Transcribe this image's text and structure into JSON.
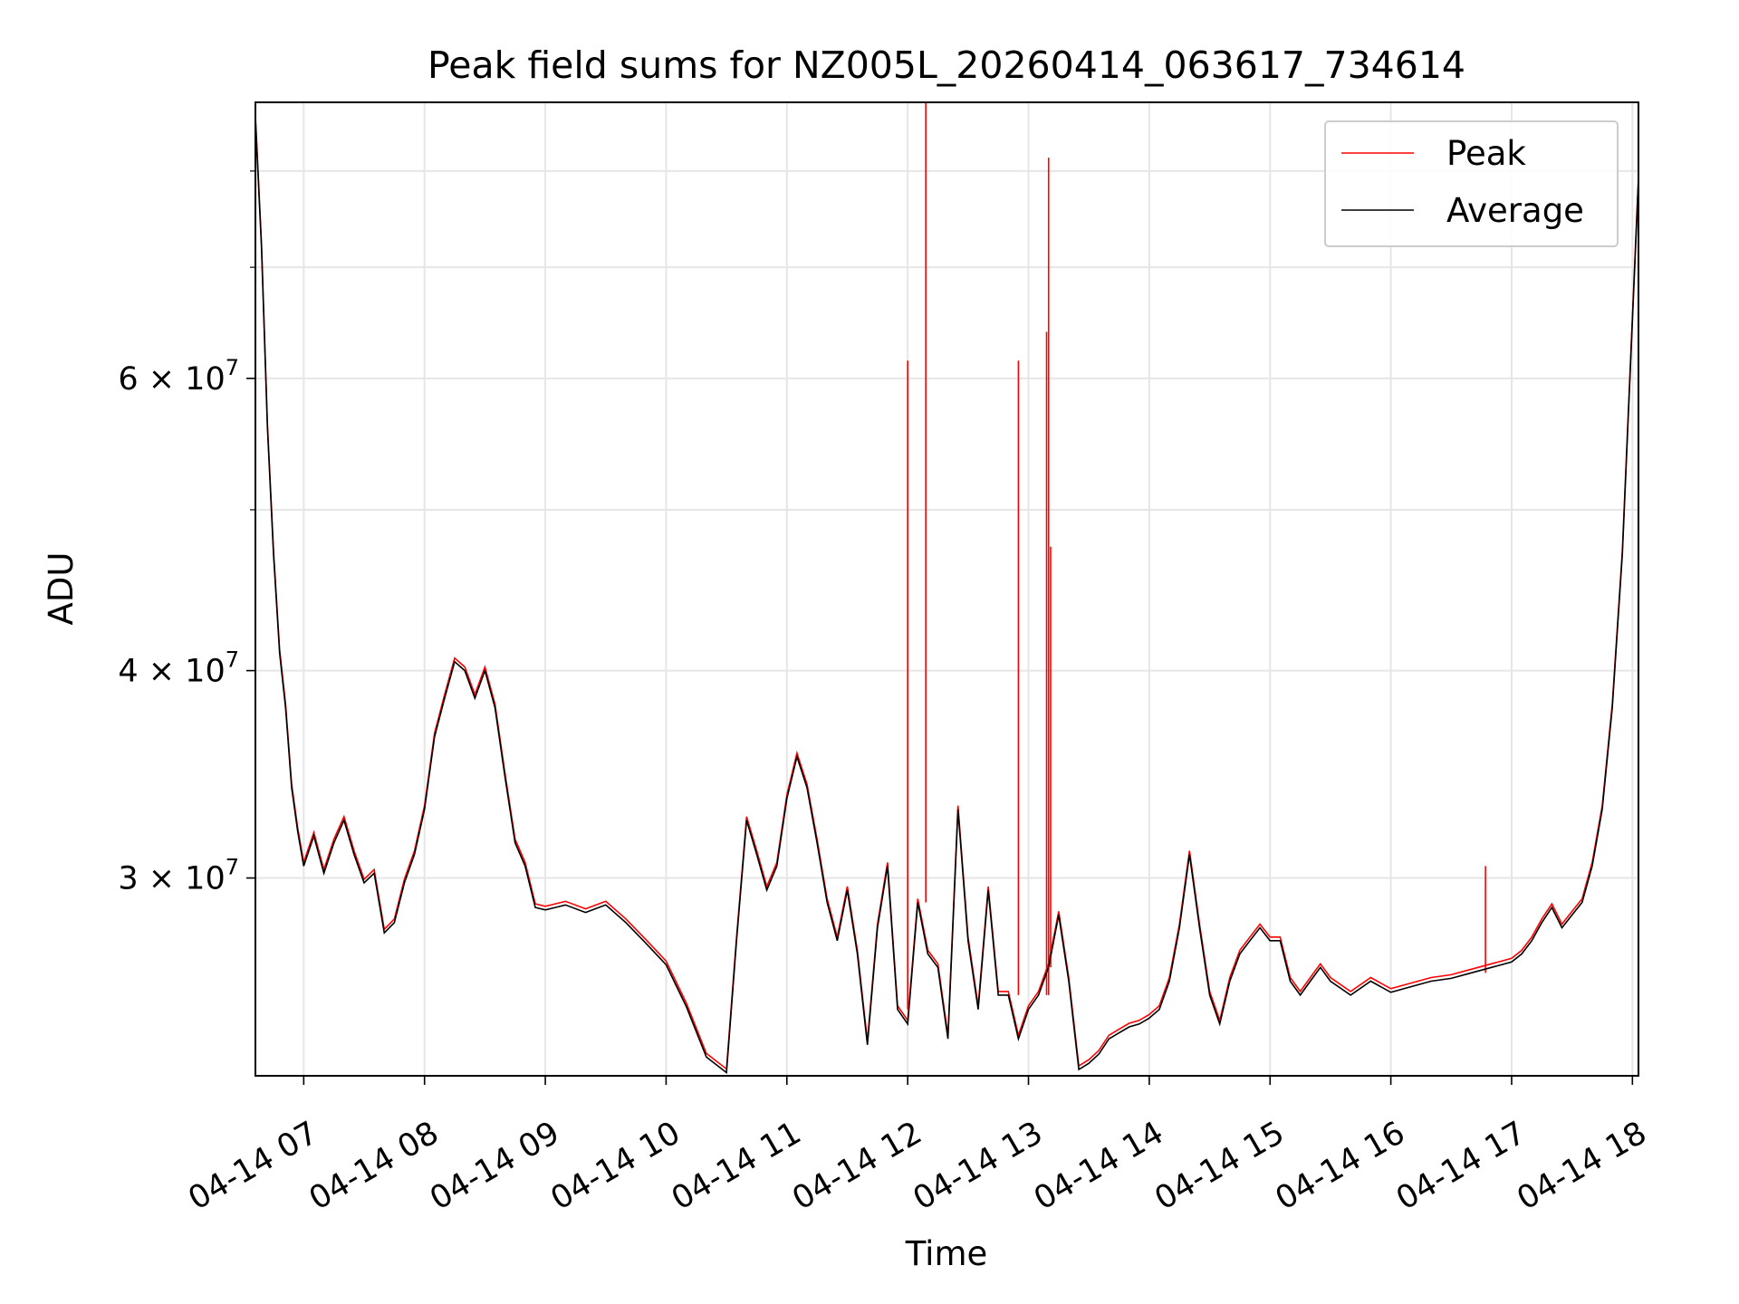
{
  "chart_data": {
    "type": "line",
    "title": "Peak field sums for NZ005L_20260414_063617_734614",
    "xlabel": "Time",
    "ylabel": "ADU",
    "y_scale": "log",
    "grid": true,
    "legend_position": "top-right",
    "xlim": [
      "2026-04-14 06:36",
      "2026-04-14 18:03"
    ],
    "ylim": [
      22800000,
      88000000
    ],
    "x_ticks": [
      {
        "value": "2026-04-14 07:00",
        "label": "04-14 07"
      },
      {
        "value": "2026-04-14 08:00",
        "label": "04-14 08"
      },
      {
        "value": "2026-04-14 09:00",
        "label": "04-14 09"
      },
      {
        "value": "2026-04-14 10:00",
        "label": "04-14 10"
      },
      {
        "value": "2026-04-14 11:00",
        "label": "04-14 11"
      },
      {
        "value": "2026-04-14 12:00",
        "label": "04-14 12"
      },
      {
        "value": "2026-04-14 13:00",
        "label": "04-14 13"
      },
      {
        "value": "2026-04-14 14:00",
        "label": "04-14 14"
      },
      {
        "value": "2026-04-14 15:00",
        "label": "04-14 15"
      },
      {
        "value": "2026-04-14 16:00",
        "label": "04-14 16"
      },
      {
        "value": "2026-04-14 17:00",
        "label": "04-14 17"
      },
      {
        "value": "2026-04-14 18:00",
        "label": "04-14 18"
      }
    ],
    "y_ticks": [
      {
        "value": 30000000,
        "mantissa": "3",
        "exp": "7"
      },
      {
        "value": 40000000,
        "mantissa": "4",
        "exp": "7"
      },
      {
        "value": 60000000,
        "mantissa": "6",
        "exp": "7"
      }
    ],
    "y_minor_ticks": [
      50000000,
      70000000,
      80000000
    ],
    "colors": {
      "peak": "#ff0000",
      "average": "#000000",
      "grid": "#e6e6e6"
    },
    "series": [
      {
        "name": "Average",
        "color": "#000000",
        "x": [
          "2026-04-14 06:36",
          "2026-04-14 06:39",
          "2026-04-14 06:42",
          "2026-04-14 06:45",
          "2026-04-14 06:48",
          "2026-04-14 06:51",
          "2026-04-14 06:54",
          "2026-04-14 06:57",
          "2026-04-14 07:00",
          "2026-04-14 07:05",
          "2026-04-14 07:10",
          "2026-04-14 07:15",
          "2026-04-14 07:20",
          "2026-04-14 07:25",
          "2026-04-14 07:30",
          "2026-04-14 07:35",
          "2026-04-14 07:40",
          "2026-04-14 07:45",
          "2026-04-14 07:50",
          "2026-04-14 07:55",
          "2026-04-14 08:00",
          "2026-04-14 08:05",
          "2026-04-14 08:10",
          "2026-04-14 08:15",
          "2026-04-14 08:20",
          "2026-04-14 08:25",
          "2026-04-14 08:30",
          "2026-04-14 08:35",
          "2026-04-14 08:40",
          "2026-04-14 08:45",
          "2026-04-14 08:50",
          "2026-04-14 08:55",
          "2026-04-14 09:00",
          "2026-04-14 09:05",
          "2026-04-14 09:10",
          "2026-04-14 09:20",
          "2026-04-14 09:30",
          "2026-04-14 09:40",
          "2026-04-14 09:50",
          "2026-04-14 10:00",
          "2026-04-14 10:10",
          "2026-04-14 10:20",
          "2026-04-14 10:30",
          "2026-04-14 10:35",
          "2026-04-14 10:40",
          "2026-04-14 10:45",
          "2026-04-14 10:50",
          "2026-04-14 10:55",
          "2026-04-14 11:00",
          "2026-04-14 11:05",
          "2026-04-14 11:10",
          "2026-04-14 11:15",
          "2026-04-14 11:20",
          "2026-04-14 11:25",
          "2026-04-14 11:30",
          "2026-04-14 11:35",
          "2026-04-14 11:40",
          "2026-04-14 11:45",
          "2026-04-14 11:50",
          "2026-04-14 11:55",
          "2026-04-14 12:00",
          "2026-04-14 12:05",
          "2026-04-14 12:10",
          "2026-04-14 12:15",
          "2026-04-14 12:20",
          "2026-04-14 12:25",
          "2026-04-14 12:30",
          "2026-04-14 12:35",
          "2026-04-14 12:40",
          "2026-04-14 12:45",
          "2026-04-14 12:50",
          "2026-04-14 12:55",
          "2026-04-14 13:00",
          "2026-04-14 13:05",
          "2026-04-14 13:10",
          "2026-04-14 13:15",
          "2026-04-14 13:20",
          "2026-04-14 13:25",
          "2026-04-14 13:30",
          "2026-04-14 13:35",
          "2026-04-14 13:40",
          "2026-04-14 13:45",
          "2026-04-14 13:50",
          "2026-04-14 13:55",
          "2026-04-14 14:00",
          "2026-04-14 14:05",
          "2026-04-14 14:10",
          "2026-04-14 14:15",
          "2026-04-14 14:20",
          "2026-04-14 14:25",
          "2026-04-14 14:30",
          "2026-04-14 14:35",
          "2026-04-14 14:40",
          "2026-04-14 14:45",
          "2026-04-14 14:50",
          "2026-04-14 14:55",
          "2026-04-14 15:00",
          "2026-04-14 15:05",
          "2026-04-14 15:10",
          "2026-04-14 15:15",
          "2026-04-14 15:20",
          "2026-04-14 15:25",
          "2026-04-14 15:30",
          "2026-04-14 15:40",
          "2026-04-14 15:50",
          "2026-04-14 16:00",
          "2026-04-14 16:10",
          "2026-04-14 16:20",
          "2026-04-14 16:30",
          "2026-04-14 16:40",
          "2026-04-14 16:50",
          "2026-04-14 17:00",
          "2026-04-14 17:05",
          "2026-04-14 17:10",
          "2026-04-14 17:15",
          "2026-04-14 17:20",
          "2026-04-14 17:25",
          "2026-04-14 17:30",
          "2026-04-14 17:35",
          "2026-04-14 17:40",
          "2026-04-14 17:45",
          "2026-04-14 17:50",
          "2026-04-14 17:55",
          "2026-04-14 18:00",
          "2026-04-14 18:03"
        ],
        "y": [
          86000000,
          72000000,
          56000000,
          47000000,
          41000000,
          38000000,
          34000000,
          32000000,
          30500000,
          31800000,
          30200000,
          31500000,
          32500000,
          31000000,
          29800000,
          30200000,
          27800000,
          28200000,
          29800000,
          31000000,
          33000000,
          36500000,
          38500000,
          40500000,
          40000000,
          38500000,
          40000000,
          38000000,
          34500000,
          31500000,
          30500000,
          28800000,
          28700000,
          28800000,
          28900000,
          28600000,
          28900000,
          28200000,
          27400000,
          26600000,
          25100000,
          23400000,
          22900000,
          27500000,
          32500000,
          31000000,
          29500000,
          30500000,
          33500000,
          35500000,
          34000000,
          31500000,
          29000000,
          27500000,
          29500000,
          27000000,
          23800000,
          28000000,
          30500000,
          25000000,
          24500000,
          29000000,
          27000000,
          26500000,
          24000000,
          33000000,
          27500000,
          25000000,
          29500000,
          25500000,
          25500000,
          24000000,
          25000000,
          25500000,
          26500000,
          28500000,
          26000000,
          23000000,
          23200000,
          23500000,
          24000000,
          24200000,
          24400000,
          24500000,
          24700000,
          25000000,
          26000000,
          28000000,
          31000000,
          28000000,
          25500000,
          24500000,
          26000000,
          27000000,
          27500000,
          28000000,
          27500000,
          27500000,
          26000000,
          25500000,
          26000000,
          26500000,
          26000000,
          25500000,
          26000000,
          25600000,
          25800000,
          26000000,
          26100000,
          26300000,
          26500000,
          26700000,
          27000000,
          27500000,
          28200000,
          28800000,
          28000000,
          28500000,
          29000000,
          30500000,
          33000000,
          38000000,
          47000000,
          65000000,
          79000000
        ]
      },
      {
        "name": "Peak",
        "color": "#ff0000",
        "spikes": [
          {
            "x": "2026-04-14 12:00",
            "y": 61500000
          },
          {
            "x": "2026-04-14 12:09",
            "y": 88000000
          },
          {
            "x": "2026-04-14 12:55",
            "y": 61500000
          },
          {
            "x": "2026-04-14 13:09",
            "y": 64000000
          },
          {
            "x": "2026-04-14 13:10",
            "y": 81500000
          },
          {
            "x": "2026-04-14 13:11",
            "y": 47500000
          },
          {
            "x": "2026-04-14 16:47",
            "y": 30500000
          }
        ]
      }
    ]
  }
}
